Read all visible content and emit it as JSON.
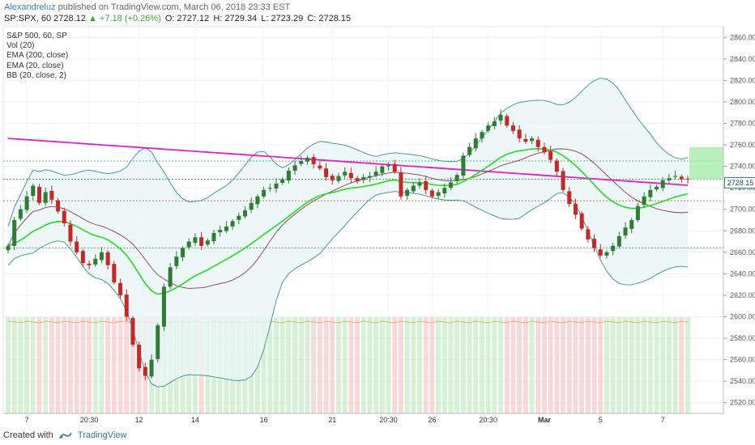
{
  "header": {
    "user": "Alexandreluz",
    "published": "published on TradingView.com, March 06, 2018 23:33 EST",
    "symbol_line": "SP:SPX, 60",
    "last": "2728.12",
    "change": "▲ +7.18 (+0.26%)",
    "open": "O: 2727.12",
    "high": "H: 2729.34",
    "low": "L: 2723.29",
    "close": "C: 2728.15"
  },
  "legend": {
    "title": "S&P 500, 60, SP",
    "items": [
      "Vol (20)",
      "EMA (200, close)",
      "EMA (20, close)",
      "BB (20, close, 2)"
    ]
  },
  "price_tag": "2728.15",
  "footer": {
    "created": "Created with",
    "brand": "TradingView"
  },
  "colors": {
    "up": "#2e7d32",
    "down": "#c62828",
    "ema200": "#e020c8",
    "ema20": "#22dd22",
    "bb_band": "#3a8f8f",
    "bb_basis": "#8a3a4a",
    "bb_fill": "#eaf5f5",
    "target_box": "#9be89b"
  },
  "chart_data": {
    "type": "candlestick",
    "y_ticks": [
      "2860.00",
      "2840.00",
      "2820.00",
      "2800.00",
      "2780.00",
      "2760.00",
      "2740.00",
      "2720.00",
      "2700.00",
      "2680.00",
      "2660.00",
      "2640.00",
      "2620.00",
      "2600.00",
      "2580.00",
      "2560.00",
      "2540.00",
      "2520.00"
    ],
    "ylim": [
      2510,
      2870
    ],
    "x_ticks": [
      "7",
      "20:30",
      "12",
      "14",
      "16",
      "21",
      "20:30",
      "26",
      "20:30",
      "Mar",
      "5",
      "7"
    ],
    "candles_close": [
      2666,
      2690,
      2700,
      2712,
      2722,
      2706,
      2716,
      2709,
      2698,
      2687,
      2670,
      2660,
      2650,
      2648,
      2654,
      2660,
      2648,
      2632,
      2620,
      2600,
      2574,
      2552,
      2545,
      2560,
      2592,
      2628,
      2646,
      2656,
      2664,
      2670,
      2674,
      2666,
      2671,
      2678,
      2681,
      2684,
      2689,
      2694,
      2699,
      2706,
      2712,
      2718,
      2720,
      2724,
      2728,
      2736,
      2741,
      2745,
      2748,
      2742,
      2738,
      2730,
      2727,
      2731,
      2735,
      2729,
      2726,
      2730,
      2731,
      2735,
      2740,
      2741,
      2735,
      2712,
      2718,
      2722,
      2725,
      2718,
      2712,
      2716,
      2720,
      2725,
      2732,
      2750,
      2758,
      2766,
      2772,
      2778,
      2782,
      2788,
      2778,
      2773,
      2766,
      2763,
      2766,
      2758,
      2753,
      2746,
      2735,
      2718,
      2705,
      2695,
      2682,
      2672,
      2664,
      2657,
      2660,
      2666,
      2675,
      2683,
      2690,
      2703,
      2712,
      2718,
      2721,
      2727,
      2729,
      2731,
      2728,
      2728
    ],
    "annotations": [
      "green target box 2728–2758",
      "dotted levels 2745, 2728, 2708, 2664"
    ]
  }
}
